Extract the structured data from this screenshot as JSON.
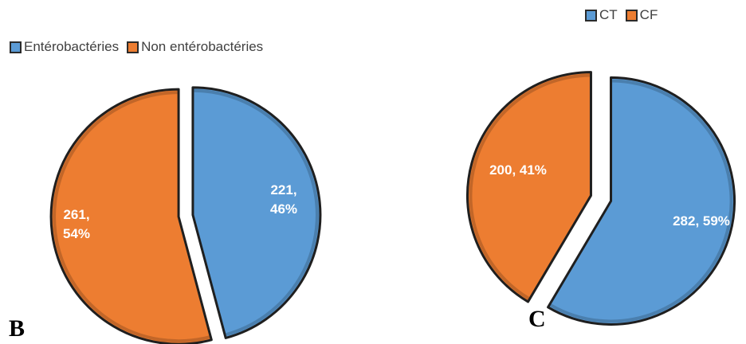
{
  "colors": {
    "blue": "#5B9BD5",
    "orange": "#ED7D31",
    "outline": "#1f1f1f"
  },
  "panels": [
    {
      "letter": "B"
    },
    {
      "letter": "C"
    }
  ],
  "chart_data": [
    {
      "type": "pie",
      "legend": [
        "Entérobactéries",
        "Non entérobactéries"
      ],
      "legend_position": "top-left",
      "slices": [
        {
          "name": "Entérobactéries",
          "value": 221,
          "percent": 46,
          "label": "221,\n46%",
          "color": "#5B9BD5"
        },
        {
          "name": "Non entérobactéries",
          "value": 261,
          "percent": 54,
          "label": "261,\n54%",
          "color": "#ED7D31"
        }
      ]
    },
    {
      "type": "pie",
      "legend": [
        "CT",
        "CF"
      ],
      "legend_position": "top-right",
      "slices": [
        {
          "name": "CT",
          "value": 282,
          "percent": 59,
          "label": "282, 59%",
          "color": "#5B9BD5"
        },
        {
          "name": "CF",
          "value": 200,
          "percent": 41,
          "label": "200, 41%",
          "color": "#ED7D31"
        }
      ]
    }
  ]
}
